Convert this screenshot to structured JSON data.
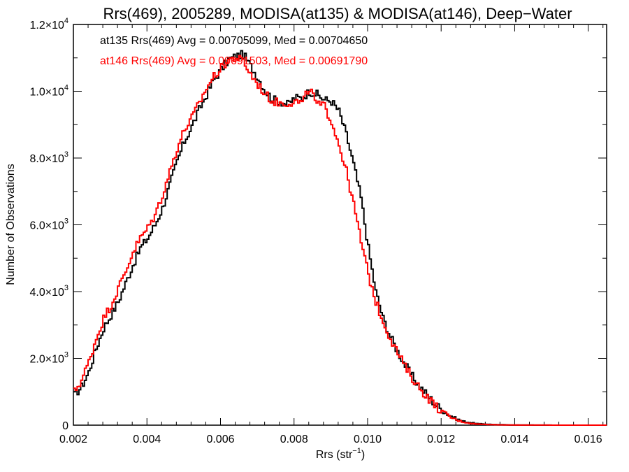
{
  "chart_data": {
    "type": "line",
    "title": "Rrs(469), 2005289, MODISA(at135) & MODISA(at146), Deep−Water",
    "xlabel": "Rrs (str⁻¹)",
    "ylabel": "Number of Observations",
    "xlim": [
      0.002,
      0.0165
    ],
    "ylim": [
      0,
      12000
    ],
    "x_ticks": [
      {
        "value": 0.002,
        "label": "0.002"
      },
      {
        "value": 0.004,
        "label": "0.004"
      },
      {
        "value": 0.006,
        "label": "0.006"
      },
      {
        "value": 0.008,
        "label": "0.008"
      },
      {
        "value": 0.01,
        "label": "0.010"
      },
      {
        "value": 0.012,
        "label": "0.012"
      },
      {
        "value": 0.014,
        "label": "0.014"
      },
      {
        "value": 0.016,
        "label": "0.016"
      }
    ],
    "y_ticks": [
      {
        "value": 0,
        "mant": "0",
        "exp": ""
      },
      {
        "value": 2000,
        "mant": "2.0×10",
        "exp": "3"
      },
      {
        "value": 4000,
        "mant": "4.0×10",
        "exp": "3"
      },
      {
        "value": 6000,
        "mant": "6.0×10",
        "exp": "3"
      },
      {
        "value": 8000,
        "mant": "8.0×10",
        "exp": "3"
      },
      {
        "value": 10000,
        "mant": "1.0×10",
        "exp": "4"
      },
      {
        "value": 12000,
        "mant": "1.2×10",
        "exp": "4"
      }
    ],
    "grid": false,
    "legend_position": "top-left",
    "series": [
      {
        "legend_text": "at135 Rrs(469) Avg = 0.00705099, Med = 0.00704650",
        "color": "#000000",
        "points": [
          [
            0.002,
            900
          ],
          [
            0.0022,
            1150
          ],
          [
            0.0024,
            1600
          ],
          [
            0.0026,
            2300
          ],
          [
            0.0028,
            2900
          ],
          [
            0.003,
            3300
          ],
          [
            0.0032,
            3700
          ],
          [
            0.0034,
            4250
          ],
          [
            0.0036,
            4800
          ],
          [
            0.0038,
            5300
          ],
          [
            0.004,
            5600
          ],
          [
            0.0042,
            6000
          ],
          [
            0.0044,
            6500
          ],
          [
            0.0046,
            7200
          ],
          [
            0.0048,
            7900
          ],
          [
            0.005,
            8500
          ],
          [
            0.0052,
            8950
          ],
          [
            0.0054,
            9450
          ],
          [
            0.0056,
            9900
          ],
          [
            0.0058,
            10350
          ],
          [
            0.006,
            10650
          ],
          [
            0.0062,
            10950
          ],
          [
            0.0064,
            11050
          ],
          [
            0.0066,
            11100
          ],
          [
            0.0068,
            10750
          ],
          [
            0.007,
            10400
          ],
          [
            0.0072,
            10000
          ],
          [
            0.0074,
            9750
          ],
          [
            0.0076,
            9700
          ],
          [
            0.0078,
            9600
          ],
          [
            0.008,
            9800
          ],
          [
            0.0082,
            9800
          ],
          [
            0.0084,
            10000
          ],
          [
            0.0086,
            9900
          ],
          [
            0.0088,
            9750
          ],
          [
            0.009,
            9700
          ],
          [
            0.0092,
            9400
          ],
          [
            0.0094,
            8700
          ],
          [
            0.0096,
            7800
          ],
          [
            0.0098,
            6800
          ],
          [
            0.01,
            5300
          ],
          [
            0.0102,
            4000
          ],
          [
            0.0104,
            3200
          ],
          [
            0.0106,
            2650
          ],
          [
            0.0108,
            2200
          ],
          [
            0.011,
            1800
          ],
          [
            0.0112,
            1450
          ],
          [
            0.0114,
            1150
          ],
          [
            0.0116,
            900
          ],
          [
            0.0118,
            650
          ],
          [
            0.012,
            450
          ],
          [
            0.0122,
            300
          ],
          [
            0.0124,
            180
          ],
          [
            0.0126,
            110
          ],
          [
            0.0128,
            70
          ],
          [
            0.013,
            40
          ],
          [
            0.0135,
            15
          ],
          [
            0.014,
            5
          ],
          [
            0.015,
            1
          ],
          [
            0.0165,
            0
          ]
        ]
      },
      {
        "legend_text": "at146 Rrs(469) Avg = 0.00691503, Med = 0.00691790",
        "color": "#ff0000",
        "points": [
          [
            0.002,
            1000
          ],
          [
            0.0022,
            1350
          ],
          [
            0.0024,
            1900
          ],
          [
            0.0026,
            2600
          ],
          [
            0.0028,
            3200
          ],
          [
            0.003,
            3600
          ],
          [
            0.0032,
            4100
          ],
          [
            0.0034,
            4600
          ],
          [
            0.0036,
            5200
          ],
          [
            0.0038,
            5600
          ],
          [
            0.004,
            5900
          ],
          [
            0.0042,
            6300
          ],
          [
            0.0044,
            6900
          ],
          [
            0.0046,
            7600
          ],
          [
            0.0048,
            8300
          ],
          [
            0.005,
            8850
          ],
          [
            0.0052,
            9200
          ],
          [
            0.0054,
            9650
          ],
          [
            0.0056,
            10100
          ],
          [
            0.0058,
            10450
          ],
          [
            0.006,
            10700
          ],
          [
            0.0062,
            10950
          ],
          [
            0.0064,
            11000
          ],
          [
            0.0066,
            10900
          ],
          [
            0.0068,
            10500
          ],
          [
            0.007,
            10200
          ],
          [
            0.0072,
            9900
          ],
          [
            0.0074,
            9700
          ],
          [
            0.0076,
            9650
          ],
          [
            0.0078,
            9650
          ],
          [
            0.008,
            9700
          ],
          [
            0.0082,
            9650
          ],
          [
            0.0084,
            10100
          ],
          [
            0.0086,
            9600
          ],
          [
            0.0088,
            9550
          ],
          [
            0.009,
            9100
          ],
          [
            0.0092,
            8400
          ],
          [
            0.0094,
            7600
          ],
          [
            0.0096,
            6600
          ],
          [
            0.0098,
            5500
          ],
          [
            0.01,
            4500
          ],
          [
            0.0102,
            3700
          ],
          [
            0.0104,
            3100
          ],
          [
            0.0106,
            2600
          ],
          [
            0.0108,
            2150
          ],
          [
            0.011,
            1750
          ],
          [
            0.0112,
            1400
          ],
          [
            0.0114,
            1100
          ],
          [
            0.0116,
            850
          ],
          [
            0.0118,
            600
          ],
          [
            0.012,
            400
          ],
          [
            0.0122,
            260
          ],
          [
            0.0124,
            150
          ],
          [
            0.0126,
            90
          ],
          [
            0.0128,
            50
          ],
          [
            0.013,
            30
          ],
          [
            0.0135,
            10
          ],
          [
            0.014,
            3
          ],
          [
            0.015,
            1
          ],
          [
            0.0165,
            0
          ]
        ]
      }
    ]
  }
}
